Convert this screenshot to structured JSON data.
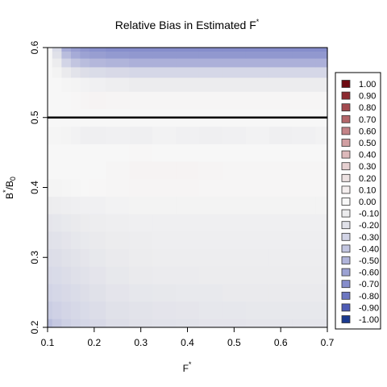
{
  "chart_data": {
    "type": "heatmap",
    "title": "Relative Bias in Estimated F",
    "title_superscript": "*",
    "xlabel": "F",
    "xlabel_superscript": "*",
    "ylabel": "B",
    "ylabel_superscript": "*",
    "ylabel_suffix": "/B",
    "ylabel_subscript": "0",
    "xlim": [
      0.1,
      0.7
    ],
    "ylim": [
      0.2,
      0.6
    ],
    "x_ticks": [
      "0.1",
      "0.2",
      "0.3",
      "0.4",
      "0.5",
      "0.6",
      "0.7"
    ],
    "y_ticks": [
      "0.2",
      "0.3",
      "0.4",
      "0.5",
      "0.6"
    ],
    "reference_line": {
      "y": 0.5,
      "color": "#000000"
    },
    "legend_position": "right",
    "legend": [
      {
        "label": "1.00",
        "color": "#6e0a12"
      },
      {
        "label": "0.90",
        "color": "#8c2a30"
      },
      {
        "label": "0.80",
        "color": "#a24a4f"
      },
      {
        "label": "0.70",
        "color": "#b4676b"
      },
      {
        "label": "0.60",
        "color": "#c48387"
      },
      {
        "label": "0.50",
        "color": "#d19fa2"
      },
      {
        "label": "0.40",
        "color": "#ddb9bb"
      },
      {
        "label": "0.30",
        "color": "#e6d0d1"
      },
      {
        "label": "0.20",
        "color": "#ede2e2"
      },
      {
        "label": "0.10",
        "color": "#f4eeee"
      },
      {
        "label": "0.00",
        "color": "#f7f7f7"
      },
      {
        "label": "-0.10",
        "color": "#ececee"
      },
      {
        "label": "-0.20",
        "color": "#e0e1e9"
      },
      {
        "label": "-0.30",
        "color": "#d2d4e6"
      },
      {
        "label": "-0.40",
        "color": "#c2c5e0"
      },
      {
        "label": "-0.50",
        "color": "#b0b4da"
      },
      {
        "label": "-0.60",
        "color": "#9ca2d3"
      },
      {
        "label": "-0.70",
        "color": "#868dcb"
      },
      {
        "label": "-0.80",
        "color": "#6c76c1"
      },
      {
        "label": "-0.90",
        "color": "#4f5cb5"
      },
      {
        "label": "-1.00",
        "color": "#1b3a8f"
      }
    ],
    "grid_x": [
      0.1,
      0.12,
      0.14,
      0.16,
      0.18,
      0.2,
      0.25,
      0.3,
      0.35,
      0.4,
      0.45,
      0.5,
      0.55,
      0.6,
      0.65,
      0.7
    ],
    "grid_y": [
      0.2,
      0.225,
      0.25,
      0.275,
      0.3,
      0.325,
      0.35,
      0.375,
      0.4,
      0.425,
      0.45,
      0.475,
      0.5,
      0.525,
      0.55,
      0.565,
      0.58,
      0.59,
      0.6
    ],
    "z": [
      [
        -0.45,
        -0.38,
        -0.33,
        -0.3,
        -0.28,
        -0.26,
        -0.22,
        -0.2,
        -0.19,
        -0.18,
        -0.17,
        -0.17,
        -0.16,
        -0.16,
        -0.16,
        -0.16
      ],
      [
        -0.35,
        -0.32,
        -0.29,
        -0.27,
        -0.25,
        -0.23,
        -0.2,
        -0.18,
        -0.17,
        -0.16,
        -0.15,
        -0.15,
        -0.14,
        -0.14,
        -0.14,
        -0.14
      ],
      [
        -0.3,
        -0.28,
        -0.26,
        -0.24,
        -0.22,
        -0.2,
        -0.17,
        -0.15,
        -0.14,
        -0.13,
        -0.13,
        -0.12,
        -0.12,
        -0.12,
        -0.12,
        -0.12
      ],
      [
        -0.26,
        -0.25,
        -0.23,
        -0.21,
        -0.19,
        -0.17,
        -0.14,
        -0.12,
        -0.11,
        -0.11,
        -0.1,
        -0.1,
        -0.1,
        -0.1,
        -0.1,
        -0.1
      ],
      [
        -0.23,
        -0.22,
        -0.2,
        -0.18,
        -0.16,
        -0.14,
        -0.12,
        -0.1,
        -0.09,
        -0.09,
        -0.09,
        -0.09,
        -0.09,
        -0.09,
        -0.09,
        -0.09
      ],
      [
        -0.2,
        -0.19,
        -0.17,
        -0.15,
        -0.13,
        -0.12,
        -0.1,
        -0.09,
        -0.08,
        -0.08,
        -0.08,
        -0.08,
        -0.08,
        -0.08,
        -0.08,
        -0.08
      ],
      [
        -0.16,
        -0.15,
        -0.13,
        -0.12,
        -0.1,
        -0.09,
        -0.08,
        -0.07,
        -0.07,
        -0.07,
        -0.07,
        -0.07,
        -0.07,
        -0.07,
        -0.07,
        -0.07
      ],
      [
        -0.1,
        -0.09,
        -0.08,
        -0.07,
        -0.06,
        -0.06,
        -0.05,
        -0.04,
        -0.04,
        -0.04,
        -0.04,
        -0.04,
        -0.04,
        -0.04,
        -0.04,
        -0.04
      ],
      [
        -0.03,
        -0.03,
        -0.02,
        -0.01,
        0.0,
        0.01,
        0.02,
        0.03,
        0.03,
        0.03,
        0.02,
        0.02,
        0.02,
        0.02,
        0.02,
        0.02
      ],
      [
        0.0,
        0.0,
        0.0,
        0.0,
        0.0,
        0.0,
        0.02,
        0.04,
        0.04,
        0.04,
        0.03,
        0.02,
        0.02,
        0.02,
        0.02,
        0.02
      ],
      [
        0.0,
        0.0,
        0.0,
        0.0,
        0.0,
        0.0,
        0.0,
        0.01,
        0.0,
        0.0,
        0.0,
        0.0,
        0.0,
        0.0,
        0.0,
        0.0
      ],
      [
        -0.02,
        -0.02,
        -0.03,
        -0.05,
        -0.07,
        -0.07,
        -0.06,
        -0.07,
        -0.05,
        -0.06,
        -0.07,
        -0.06,
        -0.05,
        -0.07,
        -0.06,
        -0.05
      ],
      [
        0.0,
        0.0,
        0.0,
        0.0,
        0.0,
        0.0,
        0.0,
        0.0,
        0.0,
        0.0,
        0.0,
        0.0,
        0.0,
        0.0,
        0.0,
        0.0
      ],
      [
        0.0,
        0.0,
        0.0,
        0.01,
        0.03,
        0.04,
        0.03,
        0.02,
        0.02,
        0.02,
        0.02,
        0.02,
        0.02,
        0.02,
        0.02,
        0.02
      ],
      [
        0.0,
        0.0,
        -0.02,
        -0.03,
        -0.05,
        -0.06,
        -0.08,
        -0.1,
        -0.1,
        -0.1,
        -0.1,
        -0.1,
        -0.1,
        -0.1,
        -0.1,
        -0.1
      ],
      [
        0.0,
        -0.04,
        -0.12,
        -0.18,
        -0.22,
        -0.24,
        -0.26,
        -0.28,
        -0.28,
        -0.28,
        -0.28,
        -0.28,
        -0.28,
        -0.28,
        -0.28,
        -0.28
      ],
      [
        0.0,
        -0.1,
        -0.3,
        -0.4,
        -0.45,
        -0.48,
        -0.5,
        -0.52,
        -0.52,
        -0.52,
        -0.52,
        -0.52,
        -0.52,
        -0.52,
        -0.52,
        -0.52
      ],
      [
        0.0,
        -0.2,
        -0.45,
        -0.55,
        -0.6,
        -0.62,
        -0.64,
        -0.65,
        -0.65,
        -0.65,
        -0.65,
        -0.65,
        -0.65,
        -0.65,
        -0.65,
        -0.65
      ],
      [
        0.0,
        -0.25,
        -0.55,
        -0.62,
        -0.66,
        -0.68,
        -0.7,
        -0.7,
        -0.7,
        -0.7,
        -0.7,
        -0.7,
        -0.7,
        -0.7,
        -0.7,
        -0.7
      ]
    ]
  }
}
